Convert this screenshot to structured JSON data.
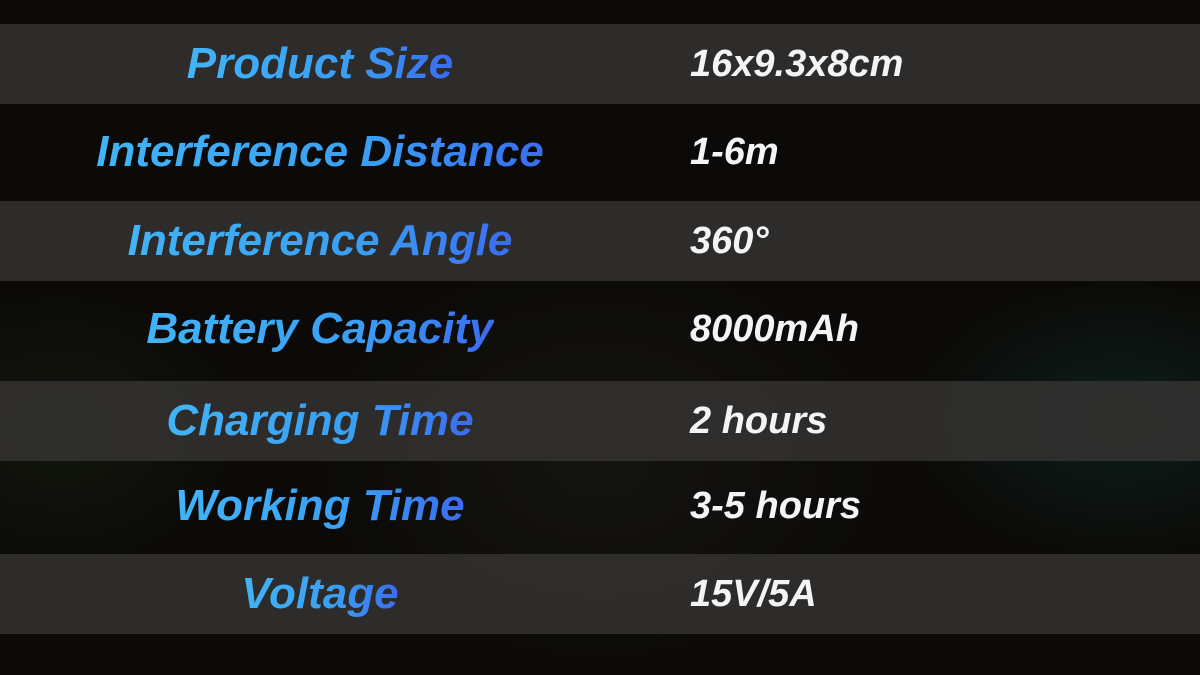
{
  "colors": {
    "background": "#0b0a08",
    "band": "#2c2b29",
    "label_start": "#42b4f7",
    "label_end": "#3a6cf0",
    "value": "#f4f4f4"
  },
  "specs": [
    {
      "label": "Product Size",
      "value": "16x9.3x8cm"
    },
    {
      "label": "Interference Distance",
      "value": "1-6m"
    },
    {
      "label": "Interference Angle",
      "value": "360°"
    },
    {
      "label": "Battery Capacity",
      "value": "8000mAh"
    },
    {
      "label": "Charging Time",
      "value": "2 hours"
    },
    {
      "label": "Working Time",
      "value": "3-5 hours"
    },
    {
      "label": "Voltage",
      "value": "15V/5A"
    }
  ]
}
